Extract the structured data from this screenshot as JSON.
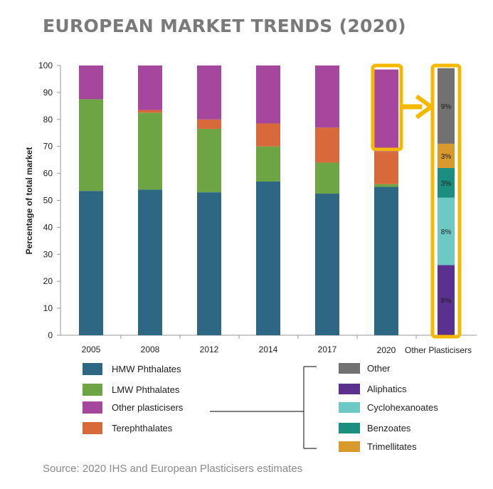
{
  "title": "EUROPEAN MARKET TRENDS (2020)",
  "source": "Source: 2020 IHS and European Plasticisers estimates",
  "colors": {
    "hmw": "#2e6784",
    "lmw": "#6da544",
    "other_plasticisers": "#a6479e",
    "terephthalates": "#d8693a",
    "other": "#717171",
    "aliphatics": "#5b3190",
    "cyclohexanoates": "#6ec9c4",
    "benzoates": "#1a8f80",
    "trimellitates": "#d89a2d",
    "highlight": "#f5b800",
    "axis": "#9a9a9a",
    "text": "#222222"
  },
  "legend_left": [
    {
      "label": "HMW Phthalates",
      "color_key": "hmw"
    },
    {
      "label": "LMW Phthalates",
      "color_key": "lmw"
    },
    {
      "label": "Other plasticisers",
      "color_key": "other_plasticisers"
    },
    {
      "label": "Terephthalates",
      "color_key": "terephthalates"
    }
  ],
  "legend_right": [
    {
      "label": "Other",
      "color_key": "other"
    },
    {
      "label": "Aliphatics",
      "color_key": "aliphatics"
    },
    {
      "label": "Cyclohexanoates",
      "color_key": "cyclohexanoates"
    },
    {
      "label": "Benzoates",
      "color_key": "benzoates"
    },
    {
      "label": "Trimellitates",
      "color_key": "trimellitates"
    }
  ],
  "chart_data": {
    "type": "bar",
    "stacked": true,
    "title": "EUROPEAN MARKET TRENDS (2020)",
    "xlabel": "",
    "ylabel": "Percentage of total market",
    "ylim": [
      0,
      100
    ],
    "yticks": [
      0,
      10,
      20,
      30,
      40,
      50,
      60,
      70,
      80,
      90,
      100
    ],
    "categories": [
      "2005",
      "2008",
      "2012",
      "2014",
      "2017",
      "2020"
    ],
    "series": [
      {
        "name": "HMW Phthalates",
        "color_key": "hmw",
        "values": [
          53.5,
          54,
          53,
          57,
          52.5,
          55
        ]
      },
      {
        "name": "LMW Phthalates",
        "color_key": "lmw",
        "values": [
          34,
          28.5,
          23.5,
          13,
          11.5,
          1
        ]
      },
      {
        "name": "Terephthalates",
        "color_key": "terephthalates",
        "values": [
          0,
          1,
          3.5,
          8.5,
          13,
          12
        ]
      },
      {
        "name": "Other plasticisers",
        "color_key": "other_plasticisers",
        "values": [
          12.5,
          16.5,
          20,
          21.5,
          23,
          30.5
        ]
      }
    ],
    "breakdown": {
      "category": "Other Plasticisers",
      "segments": [
        {
          "name": "Aliphatics",
          "color_key": "aliphatics",
          "value": 26,
          "label": "8%"
        },
        {
          "name": "Cyclohexanoates",
          "color_key": "cyclohexanoates",
          "value": 25,
          "label": "8%"
        },
        {
          "name": "Benzoates",
          "color_key": "benzoates",
          "value": 11,
          "label": "3%"
        },
        {
          "name": "Trimellitates",
          "color_key": "trimellitates",
          "value": 9,
          "label": "3%"
        },
        {
          "name": "Other",
          "color_key": "other",
          "value": 28,
          "label": "9%"
        }
      ]
    }
  }
}
